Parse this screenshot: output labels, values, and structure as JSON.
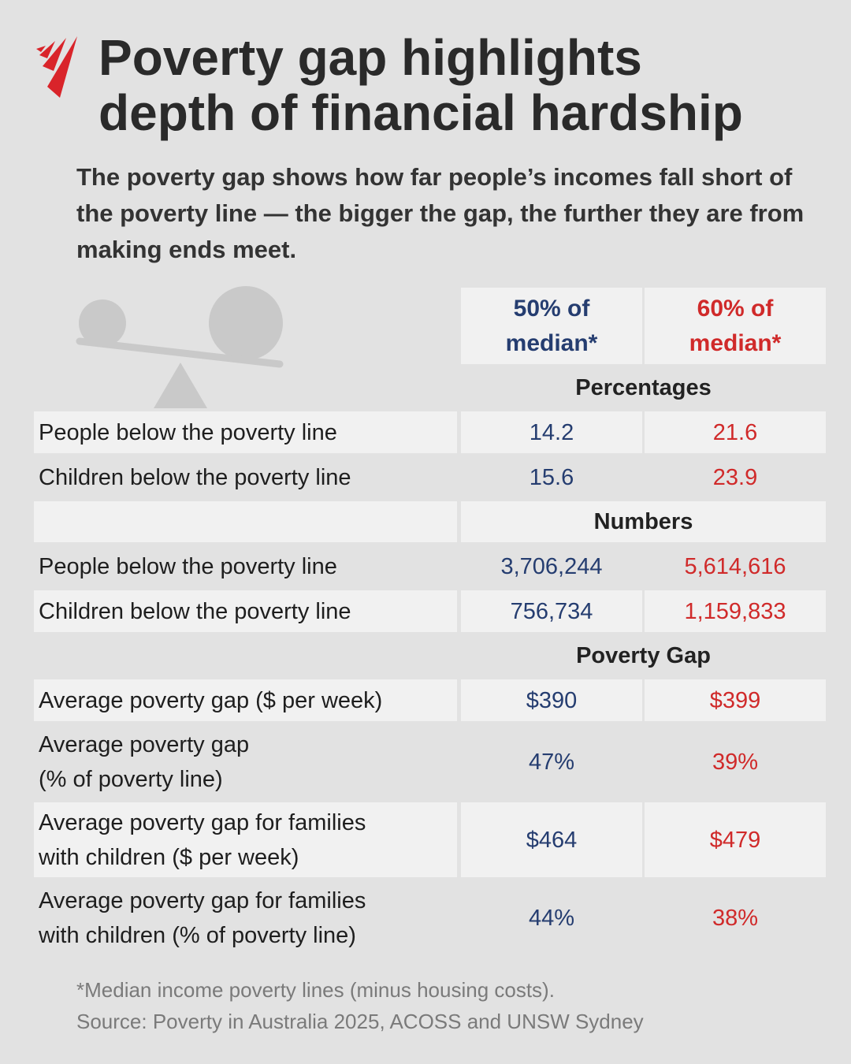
{
  "header": {
    "title_lines": [
      "Poverty gap highlights",
      "depth of financial hardship"
    ],
    "subtitle": "The poverty gap shows how far people’s incomes fall short of the poverty line — the bigger the gap, the further they are from making ends meet."
  },
  "table": {
    "columns": [
      [
        "50% of",
        "median*"
      ],
      [
        "60% of",
        "median*"
      ]
    ],
    "sections": [
      {
        "title": "Percentages",
        "rows": [
          {
            "label": [
              "People below the poverty line"
            ],
            "values": [
              "14.2",
              "21.6"
            ]
          },
          {
            "label": [
              "Children below the poverty line"
            ],
            "values": [
              "15.6",
              "23.9"
            ]
          }
        ]
      },
      {
        "title": "Numbers",
        "rows": [
          {
            "label": [
              "People below the poverty line"
            ],
            "values": [
              "3,706,244",
              "5,614,616"
            ]
          },
          {
            "label": [
              "Children below the poverty line"
            ],
            "values": [
              "756,734",
              "1,159,833"
            ]
          }
        ]
      },
      {
        "title": "Poverty Gap",
        "rows": [
          {
            "label": [
              "Average poverty gap ($ per week)"
            ],
            "values": [
              "$390",
              "$399"
            ]
          },
          {
            "label": [
              "Average poverty gap",
              "(% of poverty line)"
            ],
            "values": [
              "47%",
              "39%"
            ]
          },
          {
            "label": [
              "Average poverty gap for families",
              "with children ($ per week)"
            ],
            "values": [
              "$464",
              "$479"
            ]
          },
          {
            "label": [
              "Average poverty gap for families",
              "with children (% of poverty line)"
            ],
            "values": [
              "44%",
              "38%"
            ]
          }
        ]
      }
    ]
  },
  "footnotes": [
    "*Median income poverty lines (minus housing costs).",
    "Source: Poverty in Australia 2025, ACOSS and UNSW Sydney"
  ]
}
